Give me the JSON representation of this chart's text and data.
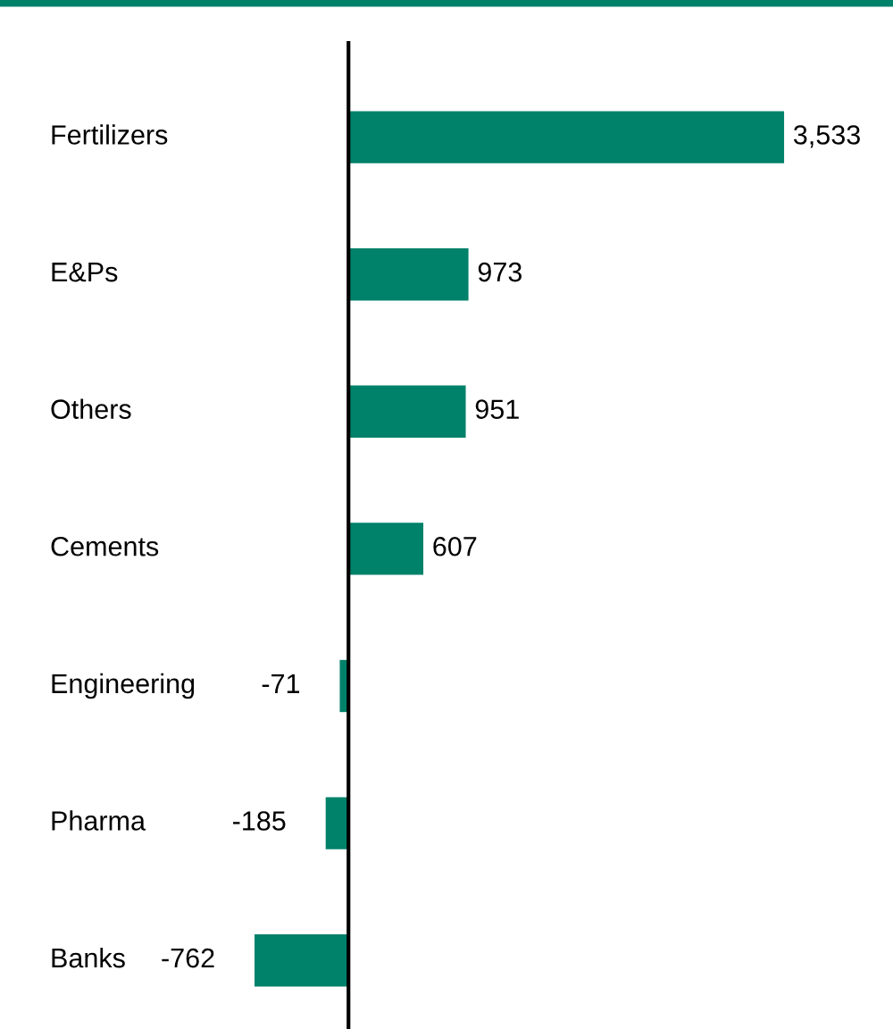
{
  "chart_data": {
    "type": "bar",
    "orientation": "horizontal",
    "categories": [
      "Fertilizers",
      "E&Ps",
      "Others",
      "Cements",
      "Engineering",
      "Pharma",
      "Banks"
    ],
    "values": [
      3533,
      973,
      951,
      607,
      -71,
      -185,
      -762
    ],
    "value_labels": [
      "3,533",
      "973",
      "951",
      "607",
      "-71",
      "-185",
      "-762"
    ],
    "color": "#00816a"
  }
}
